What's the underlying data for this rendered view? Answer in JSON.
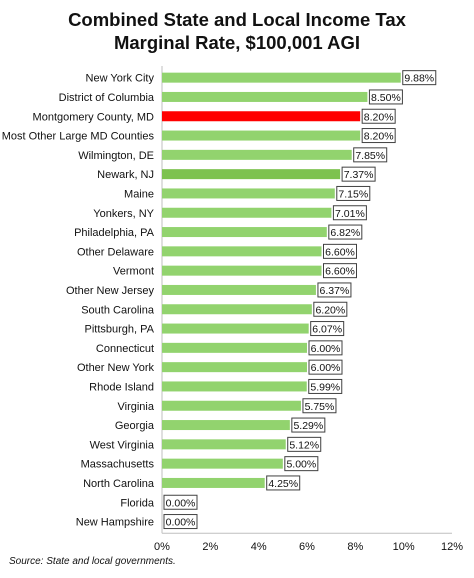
{
  "chart_data": {
    "type": "bar",
    "orientation": "horizontal",
    "title_line1": "Combined State and Local Income Tax",
    "title_line2": "Marginal Rate, $100,001 AGI",
    "source": "Source: State and local governments.",
    "categories": [
      "New York City",
      "District of Columbia",
      "Montgomery County, MD",
      "Most Other Large MD Counties",
      "Wilmington, DE",
      "Newark, NJ",
      "Maine",
      "Yonkers, NY",
      "Philadelphia, PA",
      "Other Delaware",
      "Vermont",
      "Other New Jersey",
      "South Carolina",
      "Pittsburgh, PA",
      "Connecticut",
      "Other New York",
      "Rhode Island",
      "Virginia",
      "Georgia",
      "West Virginia",
      "Massachusetts",
      "North Carolina",
      "Florida",
      "New Hampshire"
    ],
    "values": [
      9.88,
      8.5,
      8.2,
      8.2,
      7.85,
      7.37,
      7.15,
      7.01,
      6.82,
      6.6,
      6.6,
      6.37,
      6.2,
      6.07,
      6.0,
      6.0,
      5.99,
      5.75,
      5.29,
      5.12,
      5.0,
      4.25,
      0.0,
      0.0
    ],
    "value_labels": [
      "9.88%",
      "8.50%",
      "8.20%",
      "8.20%",
      "7.85%",
      "7.37%",
      "7.15%",
      "7.01%",
      "6.82%",
      "6.60%",
      "6.60%",
      "6.37%",
      "6.20%",
      "6.07%",
      "6.00%",
      "6.00%",
      "5.99%",
      "5.75%",
      "5.29%",
      "5.12%",
      "5.00%",
      "4.25%",
      "0.00%",
      "0.00%"
    ],
    "bar_colors": [
      "#92d36e",
      "#92d36e",
      "#ff0000",
      "#92d36e",
      "#92d36e",
      "#7dc24f",
      "#92d36e",
      "#92d36e",
      "#92d36e",
      "#92d36e",
      "#92d36e",
      "#92d36e",
      "#92d36e",
      "#92d36e",
      "#92d36e",
      "#92d36e",
      "#92d36e",
      "#92d36e",
      "#92d36e",
      "#92d36e",
      "#92d36e",
      "#92d36e",
      "#92d36e",
      "#92d36e"
    ],
    "xlim": [
      0,
      12
    ],
    "xticks": [
      0,
      2,
      4,
      6,
      8,
      10,
      12
    ],
    "xtick_labels": [
      "0%",
      "2%",
      "4%",
      "6%",
      "8%",
      "10%",
      "12%"
    ],
    "grid": false,
    "legend": "none"
  }
}
